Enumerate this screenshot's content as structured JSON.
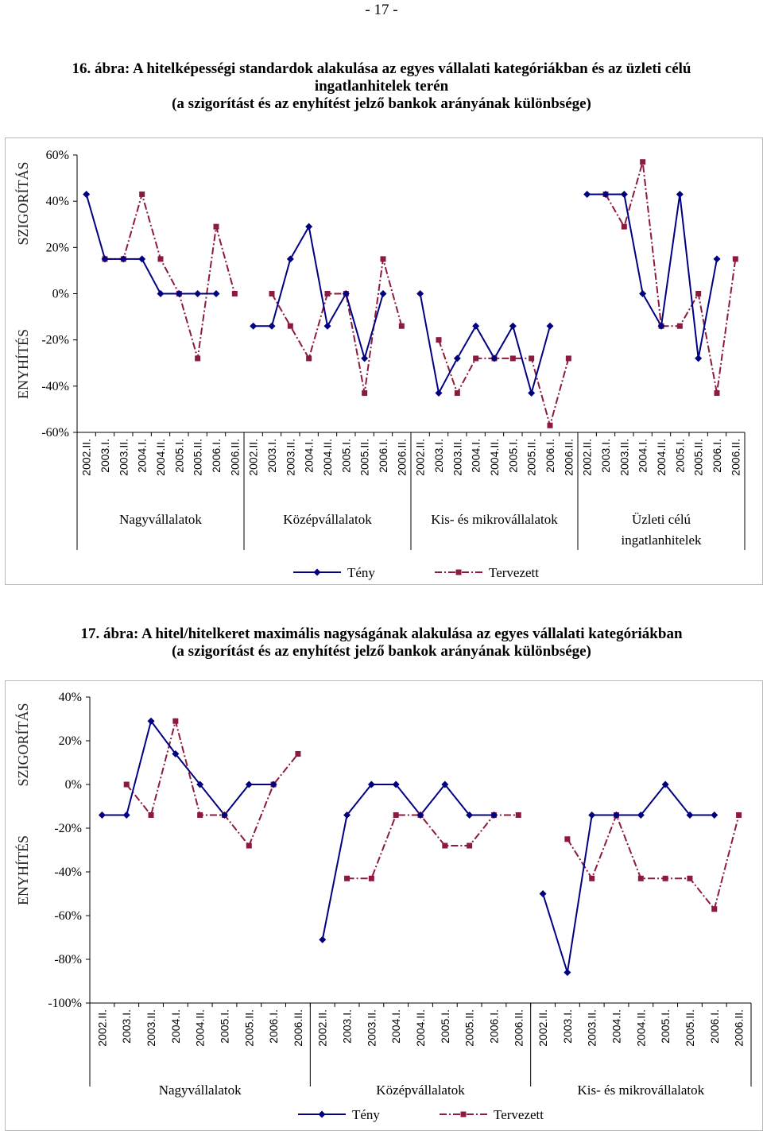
{
  "page_number": "- 17 -",
  "chart_data": [
    {
      "type": "line",
      "title_lines": [
        "16. ábra: A hitelképességi standardok alakulása az egyes vállalati kategóriákban és az üzleti célú",
        "ingatlanhitelek terén",
        "(a szigorítást és az enyhítést jelző bankok arányának különbsége)"
      ],
      "side_labels": {
        "top": "SZIGORÍTÁS",
        "bottom": "ENYHÍTÉS"
      },
      "ylim": [
        -60,
        60
      ],
      "y_ticks": [
        60,
        40,
        20,
        0,
        -20,
        -40,
        -60
      ],
      "y_tick_labels": [
        "60%",
        "40%",
        "20%",
        "0%",
        "-20%",
        "-40%",
        "-60%"
      ],
      "periods": [
        "2002.II.",
        "2003.I.",
        "2003.II.",
        "2004.I.",
        "2004.II.",
        "2005.I.",
        "2005.II.",
        "2006.I.",
        "2006.II."
      ],
      "groups": [
        {
          "name": "Nagyvállalatok",
          "label_lines": [
            "Nagyvállalatok"
          ],
          "teny": [
            43,
            15,
            15,
            15,
            0,
            0,
            0,
            0,
            null
          ],
          "tervezett": [
            null,
            15,
            15,
            43,
            15,
            0,
            -28,
            29,
            0
          ]
        },
        {
          "name": "Középvállalatok",
          "label_lines": [
            "Középvállalatok"
          ],
          "teny": [
            -14,
            -14,
            15,
            29,
            -14,
            0,
            -28,
            0,
            null
          ],
          "tervezett": [
            null,
            0,
            -14,
            -28,
            0,
            0,
            -43,
            15,
            -14
          ]
        },
        {
          "name": "Kis- és mikrovállalatok",
          "label_lines": [
            "Kis- és mikrovállalatok"
          ],
          "teny": [
            0,
            -43,
            -28,
            -14,
            -28,
            -14,
            -43,
            -14,
            null
          ],
          "tervezett": [
            null,
            -20,
            -43,
            -28,
            -28,
            -28,
            -28,
            -57,
            -28
          ]
        },
        {
          "name": "Üzleti célú ingatlanhitelek",
          "label_lines": [
            "Üzleti célú",
            "ingatlanhitelek"
          ],
          "teny": [
            43,
            43,
            43,
            0,
            -14,
            43,
            -28,
            15,
            null
          ],
          "tervezett": [
            null,
            43,
            29,
            57,
            -14,
            -14,
            0,
            -43,
            15
          ]
        }
      ],
      "series": [
        {
          "name": "Tény",
          "color": "#000080",
          "style": "solid",
          "marker": "diamond"
        },
        {
          "name": "Tervezett",
          "color": "#8b1a3d",
          "style": "dashdot",
          "marker": "square"
        }
      ]
    },
    {
      "type": "line",
      "title_lines": [
        "17. ábra: A hitel/hitelkeret maximális nagyságának alakulása az egyes vállalati kategóriákban",
        "(a szigorítást és az enyhítést jelző bankok arányának különbsége)"
      ],
      "side_labels": {
        "top": "SZIGORÍTÁS",
        "bottom": "ENYHÍTÉS"
      },
      "ylim": [
        -100,
        40
      ],
      "y_ticks": [
        40,
        20,
        0,
        -20,
        -40,
        -60,
        -80,
        -100
      ],
      "y_tick_labels": [
        "40%",
        "20%",
        "0%",
        "-20%",
        "-40%",
        "-60%",
        "-80%",
        "-100%"
      ],
      "periods": [
        "2002.II.",
        "2003.I.",
        "2003.II.",
        "2004.I.",
        "2004.II.",
        "2005.I.",
        "2005.II.",
        "2006.I.",
        "2006.II."
      ],
      "groups": [
        {
          "name": "Nagyvállalatok",
          "label_lines": [
            "Nagyvállalatok"
          ],
          "teny": [
            -14,
            -14,
            29,
            14,
            0,
            -14,
            0,
            0,
            null
          ],
          "tervezett": [
            null,
            0,
            -14,
            29,
            -14,
            -14,
            -28,
            0,
            14
          ]
        },
        {
          "name": "Középvállalatok",
          "label_lines": [
            "Középvállalatok"
          ],
          "teny": [
            -71,
            -14,
            0,
            0,
            -14,
            0,
            -14,
            -14,
            null
          ],
          "tervezett": [
            null,
            -43,
            -43,
            -14,
            -14,
            -28,
            -28,
            -14,
            -14
          ]
        },
        {
          "name": "Kis- és mikrovállalatok",
          "label_lines": [
            "Kis- és mikrovállalatok"
          ],
          "teny": [
            -50,
            -86,
            -14,
            -14,
            -14,
            0,
            -14,
            -14,
            null
          ],
          "tervezett": [
            null,
            -25,
            -43,
            -14,
            -43,
            -43,
            -43,
            -57,
            -14
          ]
        }
      ],
      "series": [
        {
          "name": "Tény",
          "color": "#000080",
          "style": "solid",
          "marker": "diamond"
        },
        {
          "name": "Tervezett",
          "color": "#8b1a3d",
          "style": "dashdot",
          "marker": "square"
        }
      ]
    }
  ]
}
